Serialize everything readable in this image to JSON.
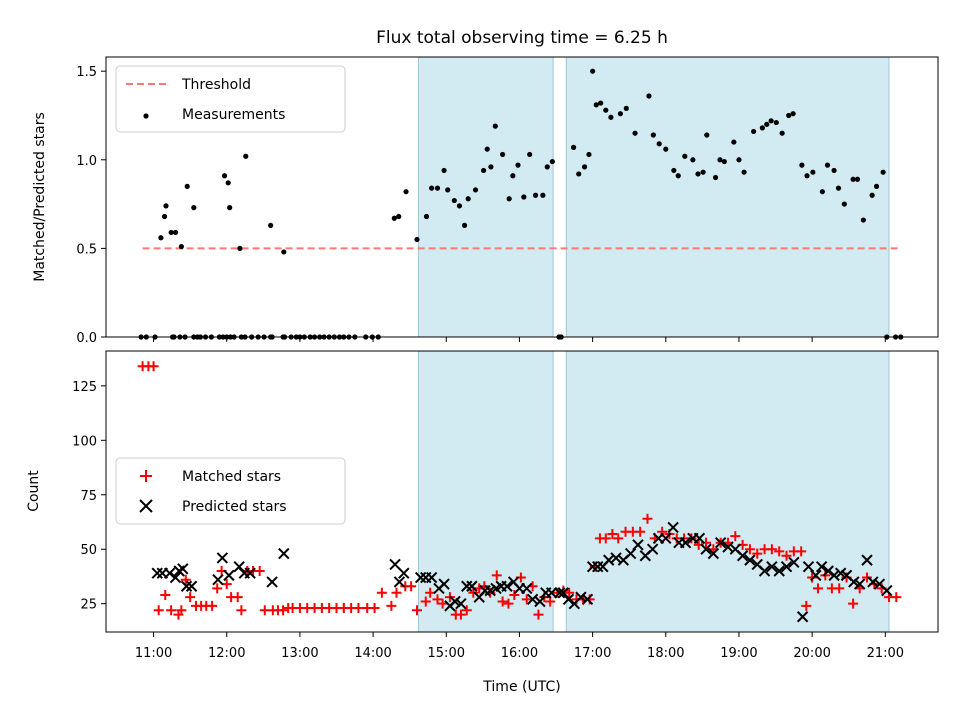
{
  "figure": {
    "title": "Flux total observing time = 6.25 h",
    "xlabel": "Time (UTC)"
  },
  "chart_data": [
    {
      "type": "scatter",
      "ylabel": "Matched/Predicted stars",
      "ylim": [
        0,
        1.58
      ],
      "yticks": [
        0.0,
        0.5,
        1.0,
        1.5
      ],
      "ytick_labels": [
        "0.0",
        "0.5",
        "1.0",
        "1.5"
      ],
      "xlim": [
        10.35,
        21.72
      ],
      "xticks": [
        11,
        12,
        13,
        14,
        15,
        16,
        17,
        18,
        19,
        20,
        21
      ],
      "xtick_labels": [
        "11:00",
        "12:00",
        "13:00",
        "14:00",
        "15:00",
        "16:00",
        "17:00",
        "18:00",
        "19:00",
        "20:00",
        "21:00"
      ],
      "shaded_intervals": [
        [
          14.62,
          16.46
        ],
        [
          16.64,
          21.05
        ]
      ],
      "shade_color": "#add8e6",
      "threshold": {
        "name": "Threshold",
        "value": 0.5,
        "x_range": [
          10.85,
          21.2
        ],
        "color": "#ff7777"
      },
      "legend": [
        "Threshold",
        "Measurements"
      ],
      "legend_loc": "upper left",
      "series": [
        {
          "name": "Measurements",
          "color": "#000000",
          "x": [
            10.83,
            10.9,
            11.02,
            11.1,
            11.17,
            11.26,
            11.28,
            11.36,
            11.43,
            11.55,
            11.64,
            11.71,
            11.79,
            11.9,
            11.95,
            12.0,
            12.05,
            12.1,
            12.2,
            12.25,
            12.34,
            12.43,
            12.51,
            12.6,
            12.62,
            12.77,
            12.79,
            12.88,
            12.95,
            13.0,
            13.06,
            13.14,
            13.2,
            13.27,
            13.33,
            13.4,
            13.47,
            13.54,
            13.6,
            13.67,
            13.75,
            13.9,
            13.99,
            14.07,
            14.29,
            14.35,
            14.45,
            14.6,
            14.73,
            14.8,
            14.88,
            14.97,
            15.02,
            15.11,
            15.18,
            15.25,
            15.3,
            15.4,
            15.51,
            15.56,
            15.61,
            15.67,
            15.77,
            15.86,
            15.91,
            15.98,
            16.06,
            16.14,
            16.22,
            16.32,
            16.38,
            16.45,
            16.54,
            16.57,
            16.74,
            16.81,
            16.89,
            16.95,
            17.0,
            17.05,
            17.11,
            17.18,
            17.25,
            17.38,
            17.46,
            17.58,
            17.77,
            17.83,
            17.91,
            18.0,
            18.11,
            18.17,
            18.26,
            18.37,
            18.44,
            18.51,
            18.56,
            18.68,
            18.74,
            18.8,
            18.93,
            19.0,
            19.07,
            19.2,
            19.32,
            19.38,
            19.44,
            19.51,
            19.59,
            19.68,
            19.74,
            19.86,
            19.93,
            20.01,
            20.14,
            20.21,
            20.3,
            20.36,
            20.44,
            20.56,
            20.62,
            20.7,
            20.82,
            20.88,
            20.97,
            21.02,
            21.14,
            21.21
          ],
          "y": [
            0.0,
            0.0,
            0.0,
            0.56,
            0.74,
            0.0,
            0.0,
            0.0,
            0.0,
            0.0,
            0.0,
            0.0,
            0.0,
            0.0,
            0.0,
            0.0,
            0.0,
            0.0,
            0.0,
            0.0,
            0.0,
            0.0,
            0.0,
            0.0,
            0.0,
            0.0,
            0.0,
            0.0,
            0.0,
            0.0,
            0.0,
            0.0,
            0.0,
            0.0,
            0.0,
            0.0,
            0.0,
            0.0,
            0.0,
            0.0,
            0.0,
            0.0,
            0.0,
            0.0,
            0.67,
            0.68,
            0.82,
            0.55,
            0.68,
            0.84,
            0.84,
            0.94,
            0.83,
            0.77,
            0.74,
            0.63,
            0.78,
            0.83,
            0.94,
            1.06,
            0.96,
            1.19,
            1.03,
            0.78,
            0.91,
            0.97,
            0.79,
            1.03,
            0.8,
            0.8,
            0.96,
            0.99,
            0.0,
            0.0,
            1.07,
            0.92,
            0.96,
            1.03,
            1.5,
            1.31,
            1.32,
            1.28,
            1.24,
            1.26,
            1.29,
            1.15,
            1.36,
            1.14,
            1.09,
            1.06,
            0.94,
            0.91,
            1.02,
            1.0,
            0.92,
            0.93,
            1.14,
            0.9,
            1.0,
            0.99,
            1.1,
            1.0,
            0.93,
            1.16,
            1.18,
            1.2,
            1.22,
            1.21,
            1.15,
            1.25,
            1.26,
            0.97,
            0.91,
            0.93,
            0.82,
            0.97,
            0.94,
            0.84,
            0.75,
            0.89,
            0.89,
            0.66,
            0.8,
            0.85,
            0.93,
            0.0,
            0.0,
            0.0
          ]
        }
      ],
      "extra_points": {
        "x": [
          11.15,
          11.24,
          11.3,
          11.38,
          11.46,
          11.55,
          11.6,
          11.97,
          12.02,
          12.04,
          12.18,
          12.26,
          12.6,
          12.78
        ],
        "y": [
          0.68,
          0.59,
          0.59,
          0.51,
          0.85,
          0.73,
          0.0,
          0.91,
          0.87,
          0.73,
          0.5,
          1.02,
          0.63,
          0.48
        ]
      }
    },
    {
      "type": "scatter",
      "ylabel": "Count",
      "ylim": [
        12,
        141
      ],
      "yticks": [
        25,
        50,
        75,
        100,
        125
      ],
      "ytick_labels": [
        "25",
        "50",
        "75",
        "100",
        "125"
      ],
      "xlim": [
        10.35,
        21.72
      ],
      "xticks": [
        11,
        12,
        13,
        14,
        15,
        16,
        17,
        18,
        19,
        20,
        21
      ],
      "xtick_labels": [
        "11:00",
        "12:00",
        "13:00",
        "14:00",
        "15:00",
        "16:00",
        "17:00",
        "18:00",
        "19:00",
        "20:00",
        "21:00"
      ],
      "shaded_intervals": [
        [
          14.62,
          16.46
        ],
        [
          16.64,
          21.05
        ]
      ],
      "shade_color": "#add8e6",
      "legend": [
        "Matched stars",
        "Predicted stars"
      ],
      "legend_loc": "center left",
      "series": [
        {
          "name": "Matched stars",
          "marker": "+",
          "color": "#ff0000",
          "x": [
            10.85,
            10.93,
            11.0,
            11.07,
            11.16,
            11.24,
            11.34,
            11.38,
            11.44,
            11.5,
            11.58,
            11.65,
            11.72,
            11.8,
            11.87,
            11.93,
            12.0,
            12.06,
            12.15,
            12.2,
            12.28,
            12.36,
            12.45,
            12.52,
            12.63,
            12.7,
            12.77,
            12.84,
            12.9,
            13.0,
            13.1,
            13.2,
            13.3,
            13.4,
            13.5,
            13.6,
            13.7,
            13.8,
            13.92,
            14.02,
            14.12,
            14.25,
            14.32,
            14.44,
            14.52,
            14.6,
            14.72,
            14.78,
            14.88,
            14.95,
            15.05,
            15.13,
            15.2,
            15.28,
            15.37,
            15.45,
            15.52,
            15.6,
            15.69,
            15.77,
            15.85,
            15.93,
            16.02,
            16.1,
            16.18,
            16.26,
            16.34,
            16.42,
            16.52,
            16.6,
            16.68,
            16.78,
            16.87,
            16.96,
            17.03,
            17.1,
            17.18,
            17.27,
            17.35,
            17.45,
            17.55,
            17.65,
            17.75,
            17.85,
            17.95,
            18.05,
            18.15,
            18.25,
            18.35,
            18.45,
            18.55,
            18.65,
            18.75,
            18.85,
            18.95,
            19.05,
            19.15,
            19.25,
            19.35,
            19.45,
            19.55,
            19.65,
            19.75,
            19.85,
            19.92,
            20.0,
            20.08,
            20.18,
            20.27,
            20.37,
            20.47,
            20.56,
            20.65,
            20.75,
            20.85,
            20.95,
            21.05,
            21.15
          ],
          "y": [
            134,
            134,
            134,
            22,
            29,
            22,
            20,
            22,
            36,
            28,
            24,
            24,
            24,
            24,
            32,
            40,
            34,
            28,
            28,
            22,
            40,
            40,
            40,
            22,
            22,
            22,
            22,
            23,
            23,
            23,
            23,
            23,
            23,
            23,
            23,
            23,
            23,
            23,
            23,
            23,
            30,
            24,
            30,
            33,
            33,
            22,
            26,
            30,
            27,
            25,
            28,
            20,
            20,
            22,
            30,
            32,
            33,
            30,
            38,
            26,
            25,
            29,
            37,
            27,
            33,
            20,
            28,
            26,
            30,
            31,
            30,
            27,
            27,
            27,
            42,
            55,
            55,
            57,
            55,
            58,
            58,
            58,
            64,
            55,
            58,
            57,
            55,
            55,
            55,
            52,
            53,
            50,
            53,
            53,
            56,
            52,
            50,
            48,
            50,
            50,
            49,
            47,
            49,
            49,
            24,
            37,
            32,
            38,
            32,
            32,
            37,
            25,
            32,
            37,
            34,
            32,
            28,
            28
          ]
        },
        {
          "name": "Predicted stars",
          "marker": "x",
          "color": "#000000",
          "x": [
            11.05,
            11.12,
            11.22,
            11.3,
            11.35,
            11.4,
            11.45,
            11.52,
            11.88,
            11.94,
            12.03,
            12.17,
            12.24,
            12.32,
            12.62,
            12.78,
            14.3,
            14.36,
            14.42,
            14.65,
            14.72,
            14.8,
            14.9,
            14.97,
            15.05,
            15.12,
            15.2,
            15.28,
            15.35,
            15.45,
            15.53,
            15.6,
            15.68,
            15.75,
            15.83,
            15.92,
            16.0,
            16.1,
            16.18,
            16.28,
            16.36,
            16.44,
            16.55,
            16.6,
            16.67,
            16.75,
            16.84,
            16.93,
            17.0,
            17.07,
            17.14,
            17.22,
            17.32,
            17.42,
            17.52,
            17.62,
            17.72,
            17.82,
            17.9,
            18.0,
            18.1,
            18.18,
            18.27,
            18.37,
            18.46,
            18.55,
            18.65,
            18.75,
            18.85,
            18.95,
            19.05,
            19.15,
            19.25,
            19.35,
            19.45,
            19.55,
            19.65,
            19.75,
            19.87,
            19.95,
            20.05,
            20.13,
            20.22,
            20.3,
            20.39,
            20.47,
            20.57,
            20.65,
            20.75,
            20.83,
            20.92,
            21.02
          ],
          "y": [
            39,
            39,
            39,
            37,
            40,
            41,
            33,
            33,
            36,
            46,
            38,
            42,
            39,
            39,
            35,
            48,
            43,
            35,
            39,
            37,
            37,
            37,
            32,
            34,
            24,
            26,
            25,
            33,
            33,
            28,
            31,
            31,
            32,
            33,
            33,
            35,
            32,
            32,
            27,
            26,
            30,
            30,
            30,
            30,
            27,
            25,
            28,
            27,
            42,
            42,
            42,
            45,
            46,
            45,
            48,
            52,
            47,
            50,
            55,
            55,
            60,
            53,
            53,
            55,
            55,
            50,
            48,
            53,
            51,
            50,
            47,
            45,
            43,
            40,
            42,
            40,
            42,
            44,
            19,
            42,
            38,
            42,
            40,
            38,
            39,
            38,
            35,
            34,
            45,
            35,
            34,
            31
          ]
        }
      ]
    }
  ]
}
